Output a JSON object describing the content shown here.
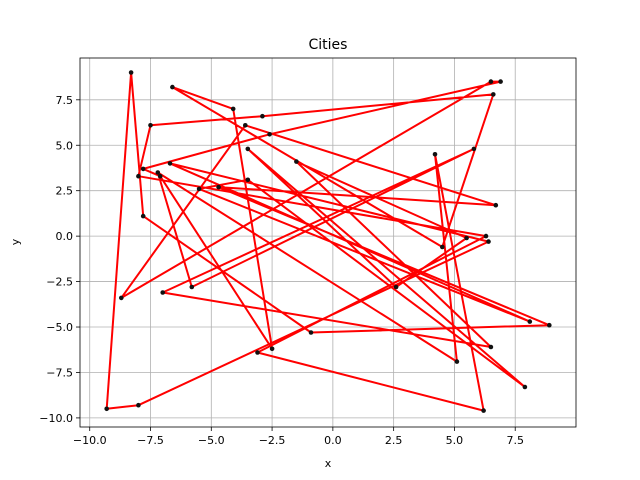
{
  "chart_data": {
    "type": "line",
    "title": "Cities",
    "xlabel": "x",
    "ylabel": "y",
    "xlim": [
      -10.4,
      10.0
    ],
    "ylim": [
      -10.5,
      9.8
    ],
    "xticks": [
      -10.0,
      -7.5,
      -5.0,
      -2.5,
      0.0,
      2.5,
      5.0,
      7.5
    ],
    "xtick_labels": [
      "−10.0",
      "−7.5",
      "−5.0",
      "−2.5",
      "0.0",
      "2.5",
      "5.0",
      "7.5"
    ],
    "yticks": [
      -10.0,
      -7.5,
      -5.0,
      -2.5,
      0.0,
      2.5,
      5.0,
      7.5
    ],
    "ytick_labels": [
      "−10.0",
      "−7.5",
      "−5.0",
      "−2.5",
      "0.0",
      "2.5",
      "5.0",
      "7.5"
    ],
    "grid": true,
    "colors": {
      "route": "#ff0000",
      "city": "#111111"
    },
    "route": {
      "x": [
        -9.3,
        -8.3,
        -7.8,
        -0.9,
        8.9,
        -4.7,
        6.7,
        -3.6,
        -8.7,
        6.5,
        6.9,
        -2.6,
        -7.8,
        -7.1,
        -2.5,
        -4.1,
        -6.6,
        4.5,
        6.6,
        -2.9,
        -7.5,
        -8.0,
        6.3,
        -3.1,
        6.2,
        4.2,
        5.1,
        -7.2,
        -5.8,
        5.8,
        -7.0,
        6.5,
        -1.5,
        5.5,
        2.6,
        -3.5,
        7.9,
        -3.5,
        -5.5,
        8.1,
        -6.7,
        6.4,
        -8.0,
        -9.3
      ],
      "y": [
        -9.5,
        9.0,
        1.1,
        -5.3,
        -4.9,
        2.7,
        1.7,
        6.1,
        -3.4,
        8.5,
        8.5,
        5.6,
        3.7,
        3.3,
        -6.2,
        7.0,
        8.2,
        -0.6,
        7.8,
        6.6,
        6.1,
        3.3,
        0.0,
        -6.4,
        -9.6,
        4.5,
        -6.9,
        3.5,
        -2.8,
        4.8,
        -3.1,
        -6.1,
        4.1,
        -0.1,
        -2.8,
        4.8,
        -8.3,
        3.1,
        2.6,
        -4.7,
        4.0,
        -0.3,
        -9.3,
        -9.5
      ]
    }
  }
}
